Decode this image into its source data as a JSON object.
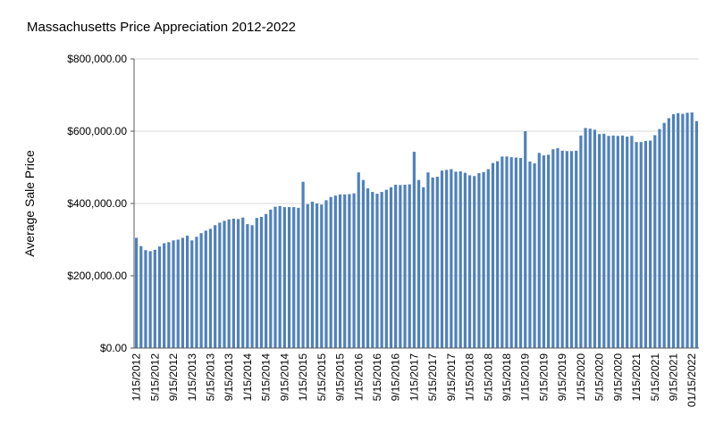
{
  "chart_data": {
    "type": "bar",
    "title": "Massachusetts Price Appreciation 2012-2022",
    "xlabel": "",
    "ylabel": "Average Sale Price",
    "ylim": [
      0,
      800000
    ],
    "yticks": [
      "$0.00",
      "$200,000.00",
      "$400,000.00",
      "$600,000.00",
      "$800,000.00"
    ],
    "grid": true,
    "legend": "none",
    "bar_color": "#4f81bd",
    "categories": [
      "1/15/2012",
      "2/15/2012",
      "3/15/2012",
      "4/15/2012",
      "5/15/2012",
      "6/15/2012",
      "7/15/2012",
      "8/15/2012",
      "9/15/2012",
      "10/15/2012",
      "11/15/2012",
      "12/15/2012",
      "1/15/2013",
      "2/15/2013",
      "3/15/2013",
      "4/15/2013",
      "5/15/2013",
      "6/15/2013",
      "7/15/2013",
      "8/15/2013",
      "9/15/2013",
      "10/15/2013",
      "11/15/2013",
      "12/15/2013",
      "1/15/2014",
      "2/15/2014",
      "3/15/2014",
      "4/15/2014",
      "5/15/2014",
      "6/15/2014",
      "7/15/2014",
      "8/15/2014",
      "9/15/2014",
      "10/15/2014",
      "11/15/2014",
      "12/15/2014",
      "1/15/2015",
      "2/15/2015",
      "3/15/2015",
      "4/15/2015",
      "5/15/2015",
      "6/15/2015",
      "7/15/2015",
      "8/15/2015",
      "9/15/2015",
      "10/15/2015",
      "11/15/2015",
      "12/15/2015",
      "1/15/2016",
      "2/15/2016",
      "3/15/2016",
      "4/15/2016",
      "5/15/2016",
      "6/15/2016",
      "7/15/2016",
      "8/15/2016",
      "9/15/2016",
      "10/15/2016",
      "11/15/2016",
      "12/15/2016",
      "1/15/2017",
      "2/15/2017",
      "3/15/2017",
      "4/15/2017",
      "5/15/2017",
      "6/15/2017",
      "7/15/2017",
      "8/15/2017",
      "9/15/2017",
      "10/15/2017",
      "11/15/2017",
      "12/15/2017",
      "1/15/2018",
      "2/15/2018",
      "3/15/2018",
      "4/15/2018",
      "5/15/2018",
      "6/15/2018",
      "7/15/2018",
      "8/15/2018",
      "9/15/2018",
      "10/15/2018",
      "11/15/2018",
      "12/15/2018",
      "1/15/2019",
      "2/15/2019",
      "3/15/2019",
      "4/15/2019",
      "5/15/2019",
      "6/15/2019",
      "7/15/2019",
      "8/15/2019",
      "9/15/2019",
      "10/15/2019",
      "11/15/2019",
      "12/15/2019",
      "1/15/2020",
      "2/15/2020",
      "3/15/2020",
      "4/15/2020",
      "5/15/2020",
      "6/15/2020",
      "7/15/2020",
      "8/15/2020",
      "9/15/2020",
      "10/15/2020",
      "11/15/2020",
      "12/15/2020",
      "1/15/2021",
      "2/15/2021",
      "3/15/2021",
      "4/15/2021",
      "5/15/2021",
      "6/15/2021",
      "7/15/2021",
      "8/15/2021",
      "9/15/2021",
      "10/15/2021",
      "11/15/2021",
      "12/15/2021",
      "01/15/2022",
      "2/15/2022"
    ],
    "tick_labels_shown": [
      "1/15/2012",
      "5/15/2012",
      "9/15/2012",
      "1/15/2013",
      "5/15/2013",
      "9/15/2013",
      "1/15/2014",
      "5/15/2014",
      "9/15/2014",
      "1/15/2015",
      "5/15/2015",
      "9/15/2015",
      "1/15/2016",
      "5/15/2016",
      "9/15/2016",
      "1/15/2017",
      "5/15/2017",
      "9/15/2017",
      "1/15/2018",
      "5/15/2018",
      "9/15/2018",
      "1/15/2019",
      "5/15/2019",
      "9/15/2019",
      "1/15/2020",
      "5/15/2020",
      "9/15/2020",
      "1/15/2021",
      "5/15/2021",
      "9/15/2021",
      "01/15/2022"
    ],
    "values": [
      305000,
      282000,
      271000,
      268000,
      272000,
      281000,
      290000,
      293000,
      298000,
      300000,
      305000,
      311000,
      298000,
      308000,
      318000,
      325000,
      330000,
      340000,
      347000,
      352000,
      356000,
      358000,
      357000,
      361000,
      343000,
      340000,
      360000,
      363000,
      371000,
      383000,
      391000,
      393000,
      390000,
      390000,
      390000,
      388000,
      460000,
      398000,
      405000,
      400000,
      397000,
      409000,
      418000,
      422000,
      425000,
      425000,
      426000,
      428000,
      486000,
      465000,
      442000,
      432000,
      427000,
      432000,
      438000,
      445000,
      452000,
      451000,
      452000,
      453000,
      543000,
      465000,
      445000,
      486000,
      472000,
      474000,
      491000,
      493000,
      495000,
      488000,
      489000,
      485000,
      478000,
      476000,
      484000,
      487000,
      495000,
      512000,
      517000,
      530000,
      530000,
      528000,
      527000,
      526000,
      600000,
      516000,
      511000,
      540000,
      533000,
      535000,
      550000,
      553000,
      546000,
      545000,
      545000,
      546000,
      588000,
      609000,
      607000,
      604000,
      592000,
      593000,
      587000,
      588000,
      587000,
      588000,
      585000,
      587000,
      570000,
      570000,
      573000,
      574000,
      589000,
      606000,
      623000,
      636000,
      647000,
      650000,
      648000,
      651000,
      652000,
      628000
    ]
  }
}
